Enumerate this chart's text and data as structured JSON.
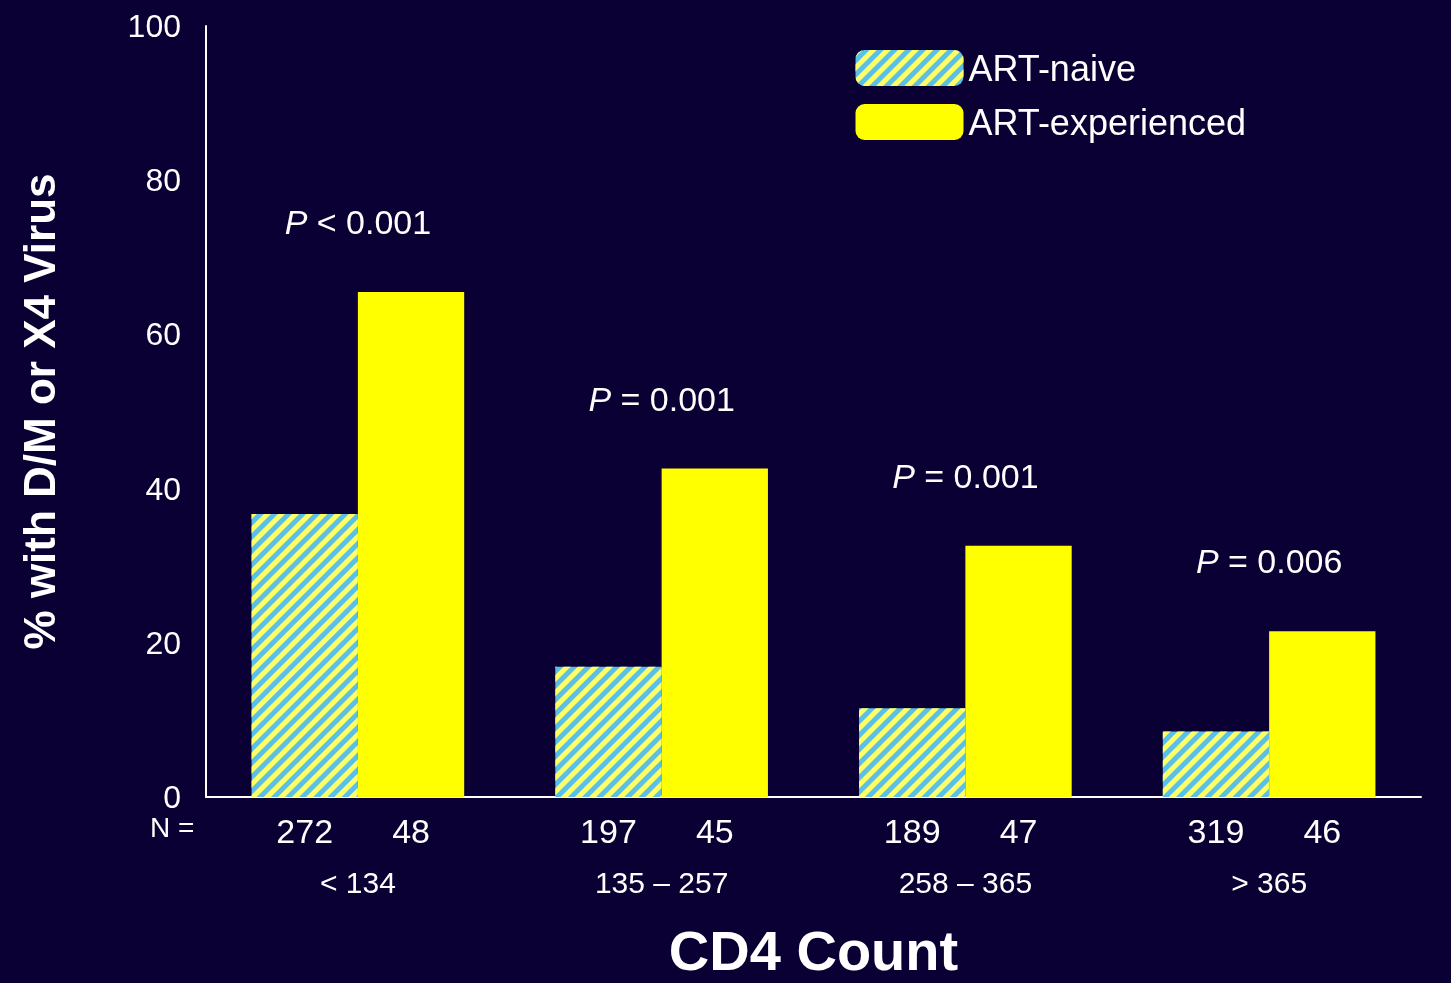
{
  "chart_data": {
    "type": "bar",
    "xlabel": "CD4 Count",
    "ylabel": "% with D/M or X4 Virus",
    "categories": [
      "< 134",
      "135 – 257",
      "258 – 365",
      "> 365"
    ],
    "series": [
      {
        "name": "ART-naive",
        "color": "#5bc0e8",
        "values": [
          36.7,
          16.9,
          11.5,
          8.5
        ]
      },
      {
        "name": "ART-experienced",
        "color": "#ffff00",
        "values": [
          65.5,
          42.6,
          32.6,
          21.5
        ]
      }
    ],
    "ylim": [
      0,
      100
    ],
    "yticks": [
      0,
      20,
      40,
      60,
      80,
      100
    ],
    "grid": false,
    "legend": "top right",
    "annotations": [
      "P < 0.001",
      "P = 0.001",
      "P = 0.001",
      "P = 0.006",
      "N =",
      "272",
      "48",
      "197",
      "45",
      "189",
      "47",
      "319",
      "46"
    ]
  }
}
